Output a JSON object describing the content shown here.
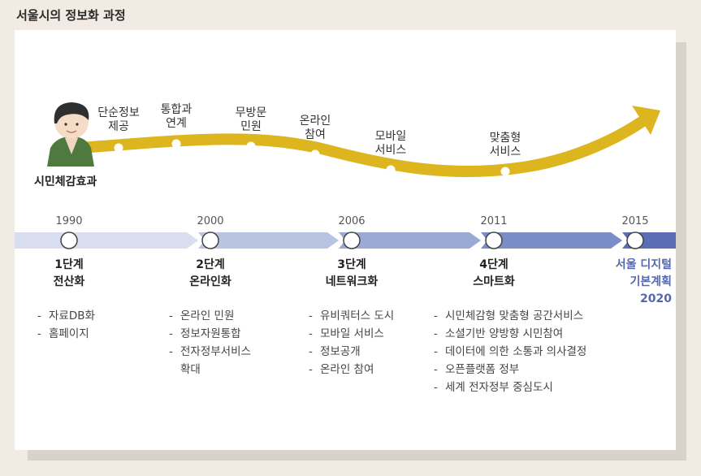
{
  "title": "서울시의 정보화 과정",
  "citizen_label": "시민체감효과",
  "wave_labels": [
    {
      "line1": "단순정보",
      "line2": "제공"
    },
    {
      "line1": "통합과",
      "line2": "연계"
    },
    {
      "line1": "무방문",
      "line2": "민원"
    },
    {
      "line1": "온라인",
      "line2": "참여"
    },
    {
      "line1": "모바일",
      "line2": "서비스"
    },
    {
      "line1": "맞춤형",
      "line2": "서비스"
    }
  ],
  "years": [
    "1990",
    "2000",
    "2006",
    "2011",
    "2015"
  ],
  "stages": [
    {
      "line1": "1단계",
      "line2": "전산화",
      "line3": ""
    },
    {
      "line1": "2단계",
      "line2": "온라인화",
      "line3": ""
    },
    {
      "line1": "3단계",
      "line2": "네트워크화",
      "line3": ""
    },
    {
      "line1": "4단계",
      "line2": "스마트화",
      "line3": ""
    },
    {
      "line1": "서울 디지털",
      "line2": "기본계획",
      "line3": "2020"
    }
  ],
  "bullets": [
    [
      "자료DB화",
      "홈페이지"
    ],
    [
      "온라인 민원",
      "정보자원통합",
      "전자정부서비스",
      "확대"
    ],
    [
      "유비쿼터스 도시",
      "모바일 서비스",
      "정보공개",
      "온라인 참여"
    ],
    [
      "시민체감형 맞춤형 공간서비스",
      "소셜기반 양방향 시민참여",
      "데이터에 의한 소통과 의사결정",
      "오픈플랫폼 정부",
      "세계 전자정부 중심도시"
    ]
  ],
  "colors": {
    "wave": "#ddb51e",
    "arrow_segments": [
      "#d8def0",
      "#b9c4e3",
      "#9aa9d6",
      "#7b8dc7",
      "#5a6db5"
    ],
    "goal_text": "#5668ad"
  }
}
